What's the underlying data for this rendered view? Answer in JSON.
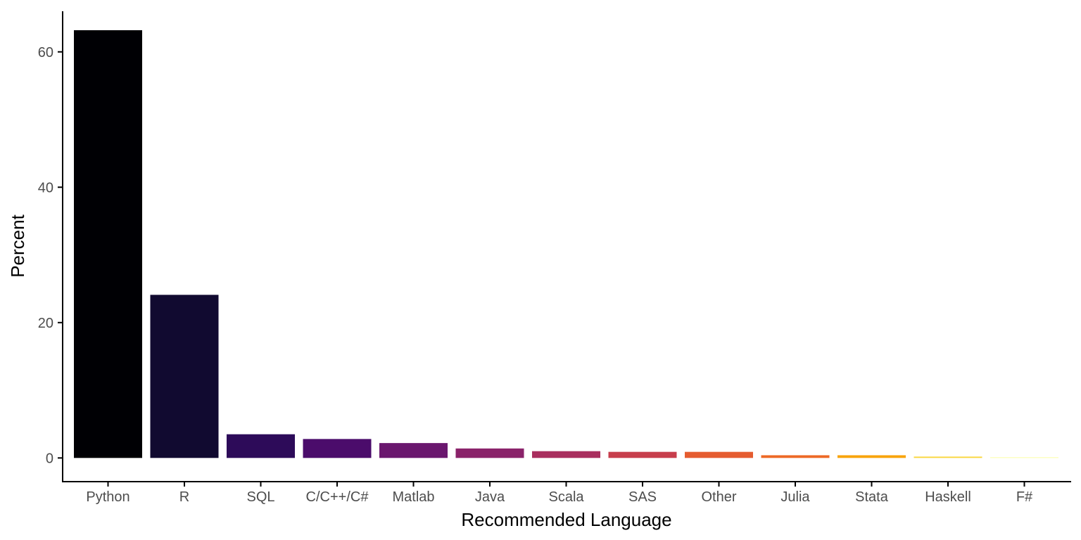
{
  "chart_data": {
    "type": "bar",
    "xlabel": "Recommended Language",
    "ylabel": "Percent",
    "ylim": [
      -3.5,
      66
    ],
    "yticks": [
      0,
      20,
      40,
      60
    ],
    "grid": false,
    "categories": [
      "Python",
      "R",
      "SQL",
      "C/C++/C#",
      "Matlab",
      "Java",
      "Scala",
      "SAS",
      "Other",
      "Julia",
      "Stata",
      "Haskell",
      "F#"
    ],
    "values": [
      63.2,
      24.1,
      3.5,
      2.8,
      2.2,
      1.4,
      1.0,
      0.9,
      0.9,
      0.4,
      0.4,
      0.2,
      0.1
    ],
    "colors": [
      "#000004",
      "#110a30",
      "#2d0b59",
      "#4b0c6b",
      "#6a176e",
      "#8a226a",
      "#a92e5e",
      "#c73e4c",
      "#e55c30",
      "#ed6925",
      "#f8a40c",
      "#f9d73e",
      "#fcffa4"
    ]
  }
}
